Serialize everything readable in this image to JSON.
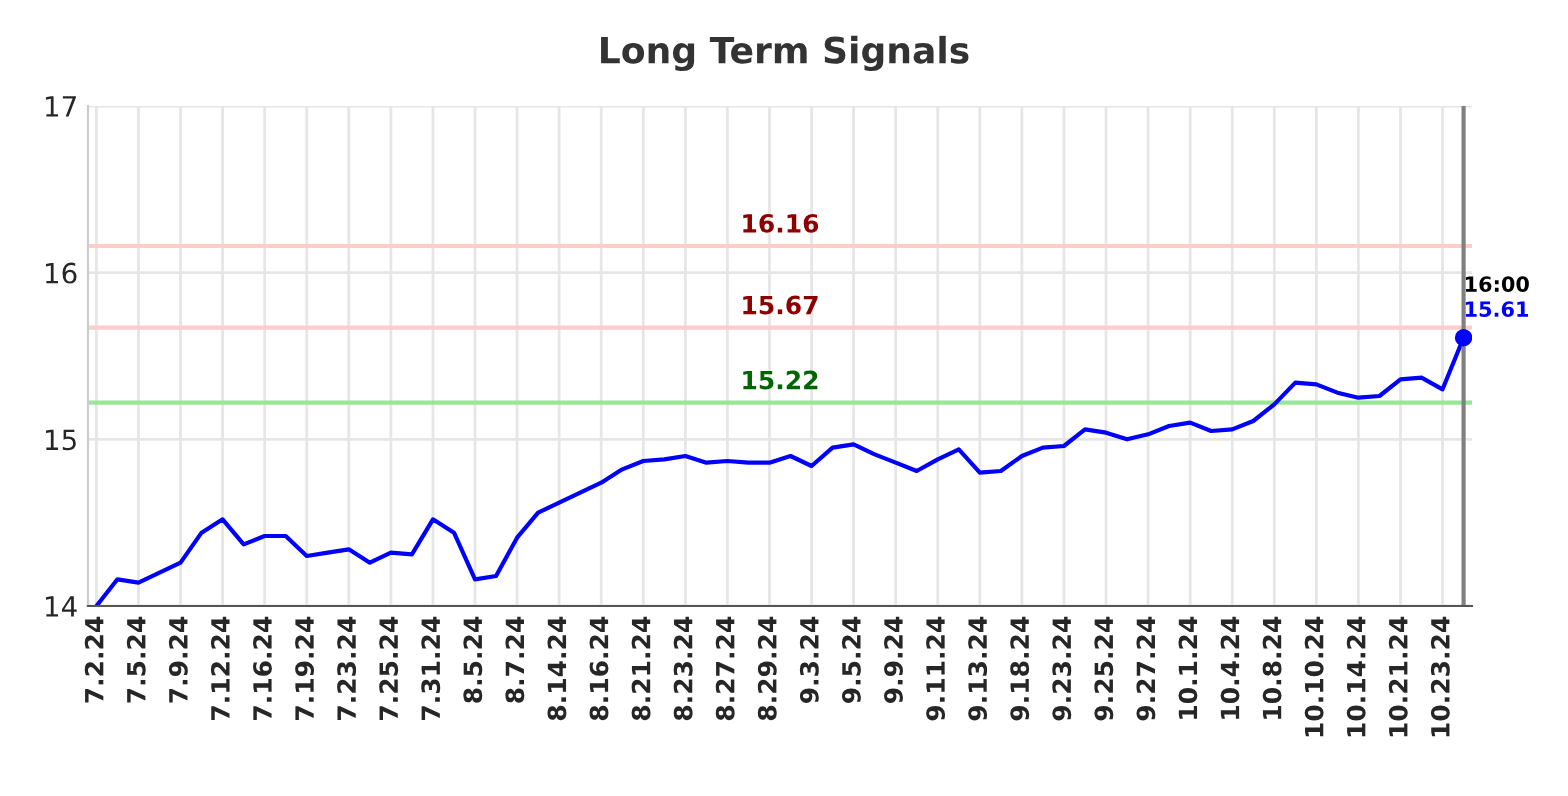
{
  "chart_data": {
    "type": "line",
    "title": "Long Term Signals",
    "categories": [
      "7.2.24",
      null,
      "7.5.24",
      null,
      "7.9.24",
      null,
      "7.12.24",
      null,
      "7.16.24",
      null,
      "7.19.24",
      null,
      "7.23.24",
      null,
      "7.25.24",
      null,
      "7.31.24",
      null,
      "8.5.24",
      null,
      "8.7.24",
      null,
      "8.14.24",
      null,
      "8.16.24",
      null,
      "8.21.24",
      null,
      "8.23.24",
      null,
      "8.27.24",
      null,
      "8.29.24",
      null,
      "9.3.24",
      null,
      "9.5.24",
      null,
      "9.9.24",
      null,
      "9.11.24",
      null,
      "9.13.24",
      null,
      "9.18.24",
      null,
      "9.23.24",
      null,
      "9.25.24",
      null,
      "9.27.24",
      null,
      "10.1.24",
      null,
      "10.4.24",
      null,
      "10.8.24",
      null,
      "10.10.24",
      null,
      "10.14.24",
      null,
      "10.21.24",
      null,
      "10.23.24",
      null
    ],
    "series": [
      {
        "color": "#0000ff",
        "values": [
          14.0,
          14.16,
          14.14,
          14.2,
          14.26,
          14.44,
          14.52,
          14.37,
          14.42,
          14.42,
          14.3,
          14.32,
          14.34,
          14.26,
          14.32,
          14.31,
          14.52,
          14.44,
          14.16,
          14.18,
          14.41,
          14.56,
          14.62,
          14.68,
          14.74,
          14.82,
          14.87,
          14.88,
          14.9,
          14.86,
          14.87,
          14.86,
          14.86,
          14.9,
          14.84,
          14.95,
          14.97,
          14.91,
          14.86,
          14.81,
          14.88,
          14.94,
          14.8,
          14.81,
          14.9,
          14.95,
          14.96,
          15.06,
          15.04,
          15.0,
          15.03,
          15.08,
          15.1,
          15.05,
          15.06,
          15.11,
          15.21,
          15.34,
          15.33,
          15.28,
          15.25,
          15.26,
          15.36,
          15.37,
          15.3,
          15.61
        ]
      }
    ],
    "ylim": [
      14,
      17
    ],
    "yticks": [
      14,
      15,
      16,
      17
    ],
    "grid": true,
    "legend": false,
    "marker": "none",
    "line_style": "solid",
    "ref_lines": [
      {
        "axis": "y",
        "value": 16.16,
        "label": "16.16",
        "color": "#ffcccc"
      },
      {
        "axis": "y",
        "value": 15.67,
        "label": "15.67",
        "color": "#ffcccc"
      },
      {
        "axis": "y",
        "value": 15.22,
        "label": "15.22",
        "color": "#99e699"
      }
    ],
    "annotations": [
      "16:00",
      "15.61"
    ]
  }
}
